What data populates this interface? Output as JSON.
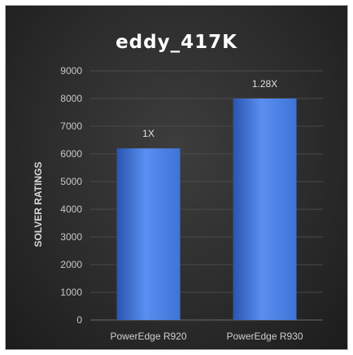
{
  "chart_data": {
    "type": "bar",
    "title": "eddy_417K",
    "xlabel": "",
    "ylabel": "SOLVER RATINGS",
    "categories": [
      "PowerEdge R920",
      "PowerEdge R930"
    ],
    "values": [
      6200,
      8000
    ],
    "data_labels": [
      "1X",
      "1.28X"
    ],
    "ylim": [
      0,
      9000
    ],
    "yticks": [
      0,
      1000,
      2000,
      3000,
      4000,
      5000,
      6000,
      7000,
      8000,
      9000
    ],
    "grid": true,
    "legend": "none",
    "colors": {
      "bar": "#3f74d6",
      "bar_light": "#5a8ef0",
      "bar_dark": "#2a55b0",
      "grid": "#4a4a4a",
      "background": "#2c2c2c"
    }
  }
}
